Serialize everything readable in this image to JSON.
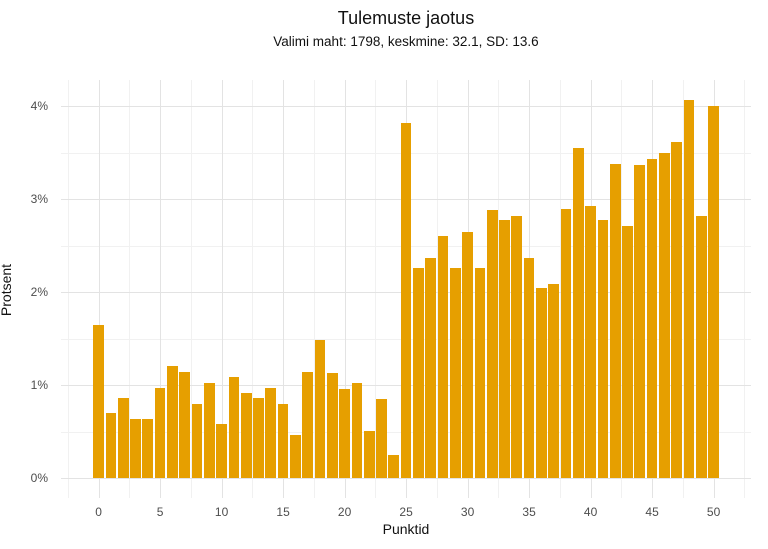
{
  "title": "Tulemuste jaotus",
  "subtitle": "Valimi maht: 1798, keskmine: 32.1, SD: 13.6",
  "chart_data": {
    "type": "bar",
    "title": "Tulemuste jaotus",
    "subtitle": "Valimi maht: 1798, keskmine: 32.1, SD: 13.6",
    "xlabel": "Punktid",
    "ylabel": "Protsent",
    "x": [
      0,
      1,
      2,
      3,
      4,
      5,
      6,
      7,
      8,
      9,
      10,
      11,
      12,
      13,
      14,
      15,
      16,
      17,
      18,
      19,
      20,
      21,
      22,
      23,
      24,
      25,
      26,
      27,
      28,
      29,
      30,
      31,
      32,
      33,
      34,
      35,
      36,
      37,
      38,
      39,
      40,
      41,
      42,
      43,
      44,
      45,
      46,
      47,
      48,
      49,
      50
    ],
    "values": [
      1.65,
      0.7,
      0.86,
      0.64,
      0.64,
      0.97,
      1.2,
      1.14,
      0.8,
      1.02,
      0.58,
      1.09,
      0.91,
      0.86,
      0.97,
      0.8,
      0.46,
      1.14,
      1.48,
      1.13,
      0.96,
      1.02,
      0.51,
      0.85,
      0.25,
      3.82,
      2.26,
      2.37,
      2.6,
      2.26,
      2.65,
      2.26,
      2.88,
      2.77,
      2.82,
      2.37,
      2.04,
      2.09,
      2.89,
      3.55,
      2.93,
      2.77,
      3.38,
      2.71,
      3.37,
      3.43,
      3.49,
      3.61,
      4.06,
      2.82,
      4.0
    ],
    "x_ticks": [
      0,
      5,
      10,
      15,
      20,
      25,
      30,
      35,
      40,
      45,
      50
    ],
    "y_ticks": [
      0,
      1,
      2,
      3,
      4
    ],
    "y_tick_labels": [
      "0%",
      "1%",
      "2%",
      "3%",
      "4%"
    ],
    "xlim": [
      -3.05,
      53.05
    ],
    "ylim": [
      0,
      4.26
    ],
    "grid": "major+minor",
    "legend": "none",
    "bar_color": "#E69F00",
    "background_color": "#FFFFFF",
    "grid_major_color": "#E3E3E3",
    "grid_minor_color": "#F1F1F1",
    "tick_label_color": "#4D4D4D",
    "text_color": "#111111"
  }
}
